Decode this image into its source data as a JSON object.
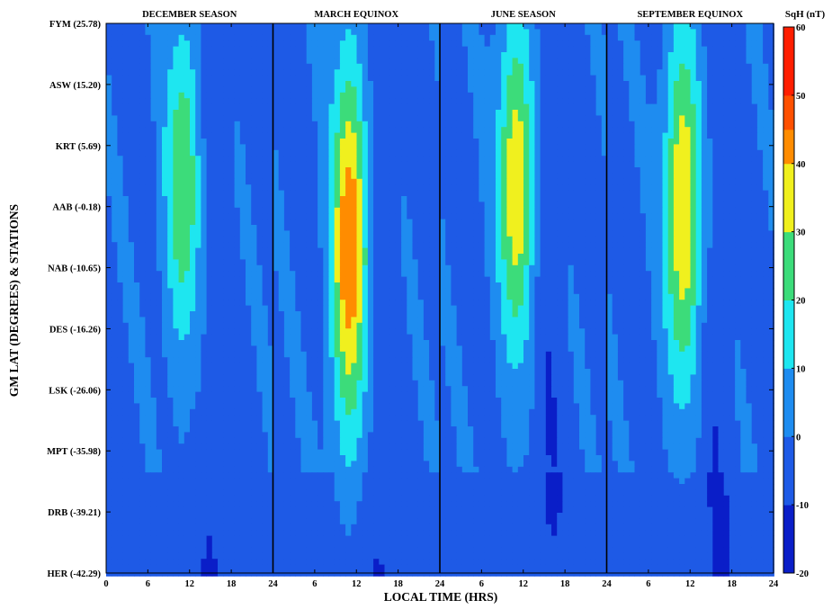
{
  "chart_data": {
    "type": "heatmap",
    "title": "",
    "xlabel": "LOCAL TIME (HRS)",
    "ylabel": "GM LAT (DEGREES) & STATIONS",
    "panels": [
      "DECEMBER SEASON",
      "MARCH EQUINOX",
      "JUNE SEASON",
      "SEPTEMBER EQUINOX"
    ],
    "x_ticks": [
      0,
      6,
      12,
      18,
      24
    ],
    "stations": [
      {
        "label": "FYM (25.78)",
        "lat": 25.78
      },
      {
        "label": "ASW (15.20)",
        "lat": 15.2
      },
      {
        "label": "KRT   (5.69)",
        "lat": 5.69
      },
      {
        "label": "AAB  (-0.18)",
        "lat": -0.18
      },
      {
        "label": "NAB (-10.65)",
        "lat": -10.65
      },
      {
        "label": "DES (-16.26)",
        "lat": -16.26
      },
      {
        "label": "LSK (-26.06)",
        "lat": -26.06
      },
      {
        "label": "MPT (-35.98)",
        "lat": -35.98
      },
      {
        "label": "DRB (-39.21)",
        "lat": -39.21
      },
      {
        "label": "HER (-42.29)",
        "lat": -42.29
      }
    ],
    "colorbar": {
      "title": "SqH (nT)",
      "ticks": [
        60,
        50,
        40,
        30,
        20,
        10,
        0,
        -10,
        -20
      ],
      "range": [
        -20,
        60
      ]
    },
    "peak_estimates": [
      {
        "panel": "DECEMBER SEASON",
        "hour": 11,
        "peak_station": "KRT",
        "peak_sqh": 30
      },
      {
        "panel": "MARCH EQUINOX",
        "hour": 11,
        "peak_station": "AAB",
        "peak_sqh": 50
      },
      {
        "panel": "JUNE SEASON",
        "hour": 11,
        "peak_station": "KRT",
        "peak_sqh": 38
      },
      {
        "panel": "SEPTEMBER EQUINOX",
        "hour": 11,
        "peak_station": "KRT",
        "peak_sqh": 40
      }
    ],
    "grid": false,
    "legend": "colorbar-right"
  }
}
